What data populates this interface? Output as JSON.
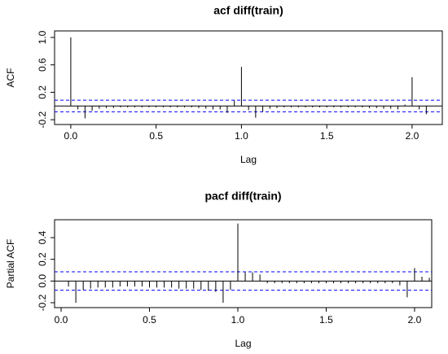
{
  "chart_data": [
    {
      "type": "acf",
      "title": "acf diff(train)",
      "xlabel": "Lag",
      "ylabel": "ACF",
      "x": [
        0,
        0.0417,
        0.0833,
        0.125,
        0.1667,
        0.2083,
        0.25,
        0.2917,
        0.3333,
        0.375,
        0.4167,
        0.4583,
        0.5,
        0.5417,
        0.5833,
        0.625,
        0.6667,
        0.7083,
        0.75,
        0.7917,
        0.8333,
        0.875,
        0.9167,
        0.9583,
        1,
        1.0417,
        1.0833,
        1.125,
        1.1667,
        1.2083,
        1.25,
        1.2917,
        1.3333,
        1.375,
        1.4167,
        1.4583,
        1.5,
        1.5417,
        1.5833,
        1.625,
        1.6667,
        1.7083,
        1.75,
        1.7917,
        1.8333,
        1.875,
        1.9167,
        1.9583,
        2,
        2.0417,
        2.0833
      ],
      "values": [
        1.0,
        -0.05,
        -0.18,
        -0.07,
        -0.04,
        -0.03,
        -0.03,
        -0.02,
        -0.02,
        -0.02,
        -0.02,
        -0.02,
        -0.02,
        -0.02,
        -0.02,
        -0.02,
        -0.02,
        -0.02,
        -0.03,
        -0.04,
        -0.05,
        -0.05,
        -0.1,
        0.08,
        0.57,
        -0.06,
        -0.17,
        -0.08,
        -0.04,
        -0.03,
        -0.02,
        -0.02,
        -0.02,
        -0.02,
        -0.02,
        -0.02,
        -0.02,
        -0.02,
        -0.02,
        -0.02,
        -0.02,
        -0.02,
        -0.03,
        -0.03,
        -0.04,
        -0.04,
        -0.05,
        0.02,
        0.42,
        -0.05,
        -0.12
      ],
      "color": "#000000",
      "ci": 0.085,
      "ci_color": "#0000ff",
      "xlim": [
        -0.095,
        2.177
      ],
      "ylim": [
        -0.27,
        1.095
      ],
      "xticks": [
        {
          "value": 0,
          "label": "0.0"
        },
        0.5,
        {
          "value": 1,
          "label": "1.0"
        },
        1.5,
        {
          "value": 2,
          "label": "2.0"
        }
      ],
      "yticks": [
        -0.2,
        0.2,
        0.6,
        {
          "value": 1,
          "label": "1.0"
        }
      ]
    },
    {
      "type": "acf",
      "title": "pacf diff(train)",
      "xlabel": "Lag",
      "ylabel": "Partial ACF",
      "x": [
        0.0417,
        0.0833,
        0.125,
        0.1667,
        0.2083,
        0.25,
        0.2917,
        0.3333,
        0.375,
        0.4167,
        0.4583,
        0.5,
        0.5417,
        0.5833,
        0.625,
        0.6667,
        0.7083,
        0.75,
        0.7917,
        0.8333,
        0.875,
        0.9167,
        0.9583,
        1,
        1.0417,
        1.0833,
        1.125,
        1.1667,
        1.2083,
        1.25,
        1.2917,
        1.3333,
        1.375,
        1.4167,
        1.4583,
        1.5,
        1.5417,
        1.5833,
        1.625,
        1.6667,
        1.7083,
        1.75,
        1.7917,
        1.8333,
        1.875,
        1.9167,
        1.9583,
        2,
        2.0417,
        2.0833
      ],
      "values": [
        -0.05,
        -0.2,
        -0.08,
        -0.07,
        -0.06,
        -0.06,
        -0.06,
        -0.05,
        -0.05,
        -0.05,
        -0.05,
        -0.06,
        -0.06,
        -0.06,
        -0.06,
        -0.07,
        -0.07,
        -0.07,
        -0.08,
        -0.09,
        -0.1,
        -0.2,
        -0.08,
        0.53,
        0.08,
        0.08,
        0.06,
        -0.02,
        -0.02,
        -0.02,
        -0.02,
        -0.02,
        -0.02,
        -0.02,
        -0.02,
        -0.02,
        -0.02,
        -0.02,
        -0.02,
        -0.02,
        -0.02,
        -0.02,
        -0.02,
        -0.02,
        -0.02,
        -0.04,
        -0.15,
        0.12,
        0.04,
        0.03
      ],
      "color": "#000000",
      "ci": 0.085,
      "ci_color": "#0000ff",
      "xlim": [
        -0.037,
        2.097
      ],
      "ylim": [
        -0.245,
        0.565
      ],
      "xticks": [
        {
          "value": 0,
          "label": "0.0"
        },
        0.5,
        {
          "value": 1,
          "label": "1.0"
        },
        1.5,
        {
          "value": 2,
          "label": "2.0"
        }
      ],
      "yticks": [
        -0.2,
        {
          "value": 0,
          "label": "0.0"
        },
        0.2,
        0.4
      ]
    }
  ]
}
